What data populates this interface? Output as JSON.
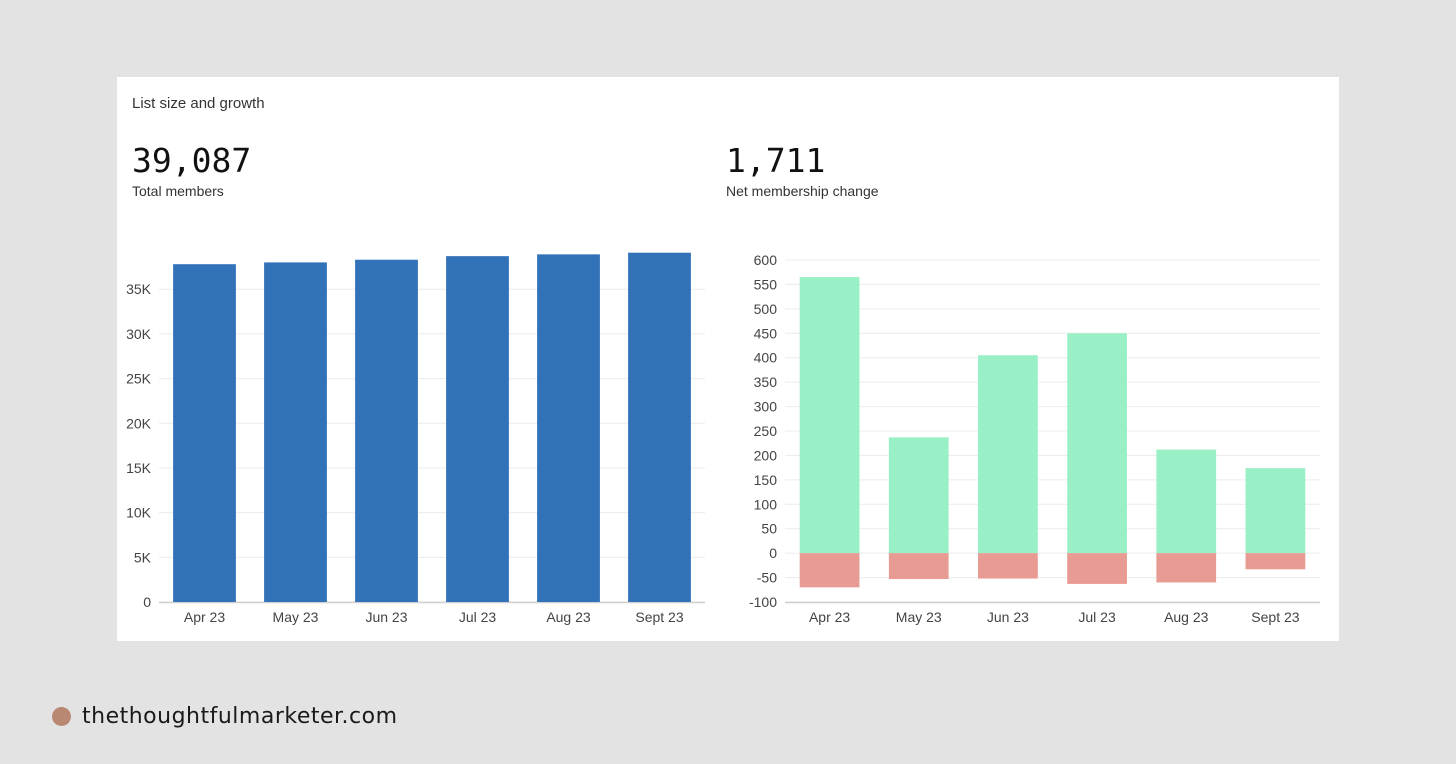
{
  "card": {
    "title": "List size and growth"
  },
  "metrics": {
    "total_members": {
      "value": "39,087",
      "label": "Total members"
    },
    "net_change": {
      "value": "1,711",
      "label": "Net membership change"
    }
  },
  "footer": {
    "brand": "thethoughtfulmarketer.com"
  },
  "colors": {
    "bar_blue": "#3272b9",
    "positive_green": "#9af0c6",
    "negative_red": "#e89b92",
    "grid": "#ececec",
    "axis": "#cfcfcf",
    "background": "#e3e3e3",
    "card": "#ffffff",
    "dot": "#b98872"
  },
  "chart_data": [
    {
      "type": "bar",
      "title": "",
      "categories": [
        "Apr 23",
        "May 23",
        "Jun 23",
        "Jul 23",
        "Aug 23",
        "Sept 23"
      ],
      "values": [
        37800,
        38000,
        38300,
        38700,
        38900,
        39087
      ],
      "ylim": [
        0,
        39500
      ],
      "yticks": [
        0,
        5000,
        10000,
        15000,
        20000,
        25000,
        30000,
        35000
      ],
      "ytick_labels": [
        "0",
        "5K",
        "10K",
        "15K",
        "20K",
        "25K",
        "30K",
        "35K"
      ],
      "xlabel": "",
      "ylabel": "",
      "grid": true,
      "legend": "none"
    },
    {
      "type": "bar",
      "stacked": true,
      "title": "",
      "categories": [
        "Apr 23",
        "May 23",
        "Jun 23",
        "Jul 23",
        "Aug 23",
        "Sept 23"
      ],
      "series": [
        {
          "color": "#9af0c6",
          "values": [
            565,
            237,
            405,
            450,
            212,
            174
          ]
        },
        {
          "color": "#e89b92",
          "values": [
            -70,
            -53,
            -52,
            -63,
            -60,
            -33
          ]
        }
      ],
      "ylim": [
        -100,
        600
      ],
      "yticks": [
        -100,
        -50,
        0,
        50,
        100,
        150,
        200,
        250,
        300,
        350,
        400,
        450,
        500,
        550,
        600
      ],
      "ytick_labels": [
        "-100",
        "-50",
        "0",
        "50",
        "100",
        "150",
        "200",
        "250",
        "300",
        "350",
        "400",
        "450",
        "500",
        "550",
        "600"
      ],
      "xlabel": "",
      "ylabel": "",
      "grid": true,
      "legend": "none"
    }
  ]
}
